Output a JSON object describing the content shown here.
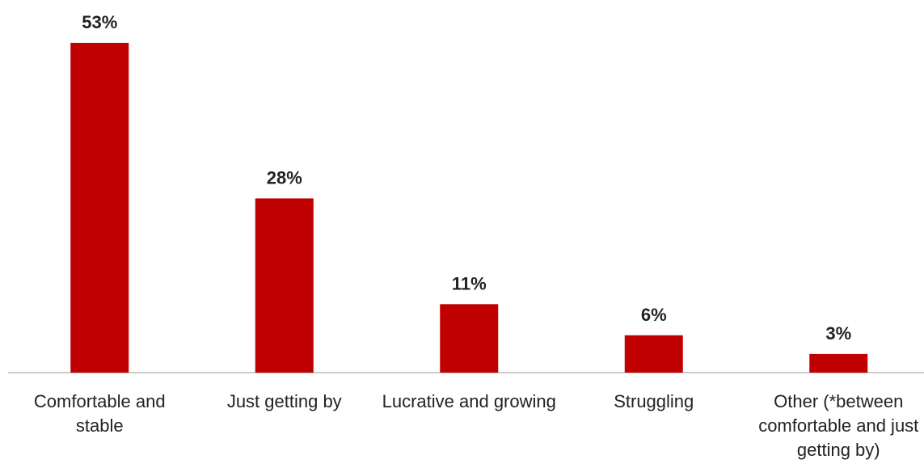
{
  "chart_data": {
    "type": "bar",
    "categories": [
      "Comfortable and stable",
      "Just getting by",
      "Lucrative and growing",
      "Struggling",
      "Other (*between comfortable and just getting by)"
    ],
    "values": [
      53,
      28,
      11,
      6,
      3
    ],
    "value_labels": [
      "53%",
      "28%",
      "11%",
      "6%",
      "3%"
    ],
    "color": "#c00000"
  }
}
